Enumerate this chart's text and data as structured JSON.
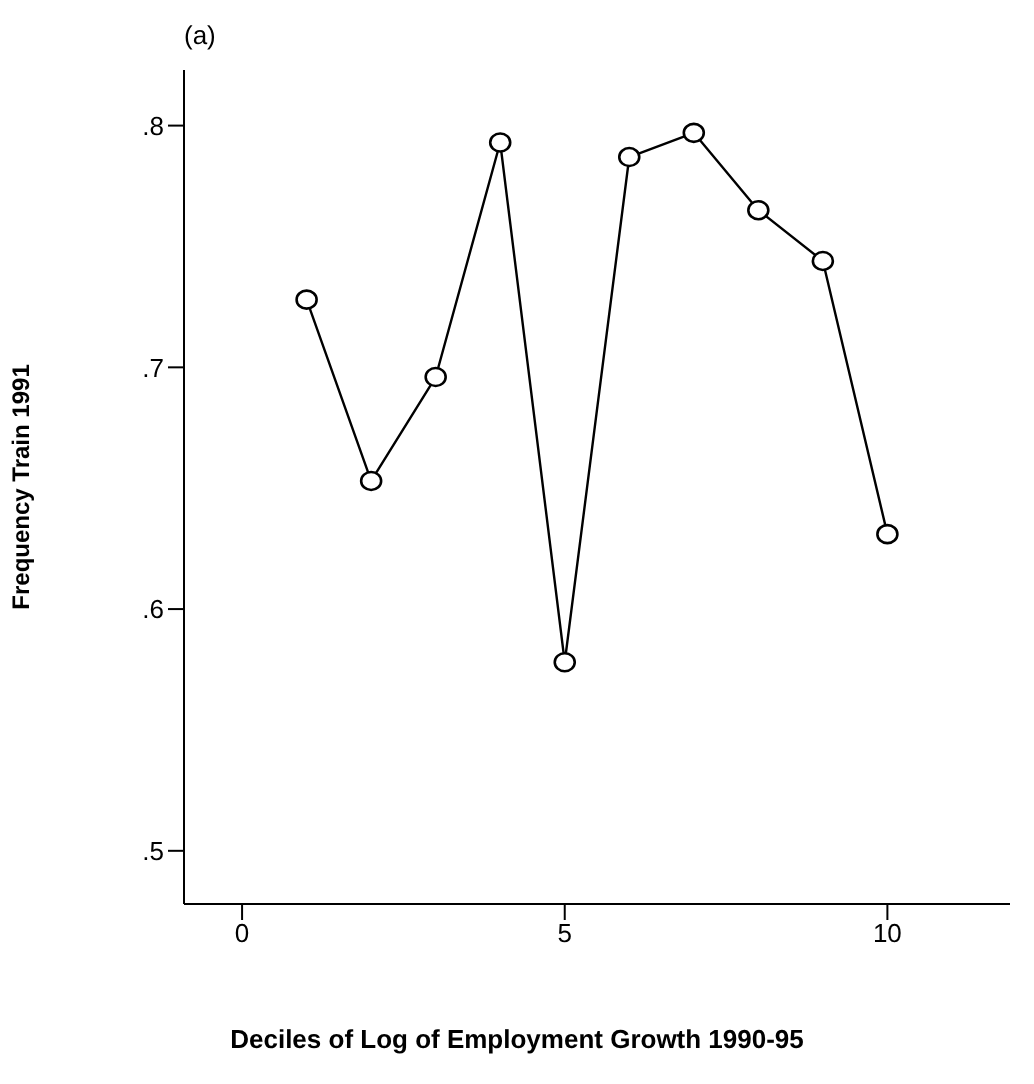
{
  "chart_data": {
    "type": "line",
    "title": "(a)",
    "xlabel": "Deciles of Log of Employment Growth 1990-95",
    "ylabel": "Frequency Train 1991",
    "x": [
      1,
      2,
      3,
      4,
      5,
      6,
      7,
      8,
      9,
      10
    ],
    "series": [
      {
        "color": "#000000",
        "values": [
          0.728,
          0.653,
          0.696,
          0.793,
          0.578,
          0.787,
          0.797,
          0.765,
          0.744,
          0.631
        ]
      }
    ],
    "xlim": [
      -0.9,
      11.9
    ],
    "xticks": [
      0,
      5,
      10
    ],
    "ylim": [
      0.478,
      0.823
    ],
    "yticks": [
      {
        "value": 0.5,
        "label": ".5"
      },
      {
        "value": 0.6,
        "label": ".6"
      },
      {
        "value": 0.7,
        "label": ".7"
      },
      {
        "value": 0.8,
        "label": ".8"
      }
    ],
    "grid": false,
    "marker": "circle",
    "line_style": "solid"
  }
}
